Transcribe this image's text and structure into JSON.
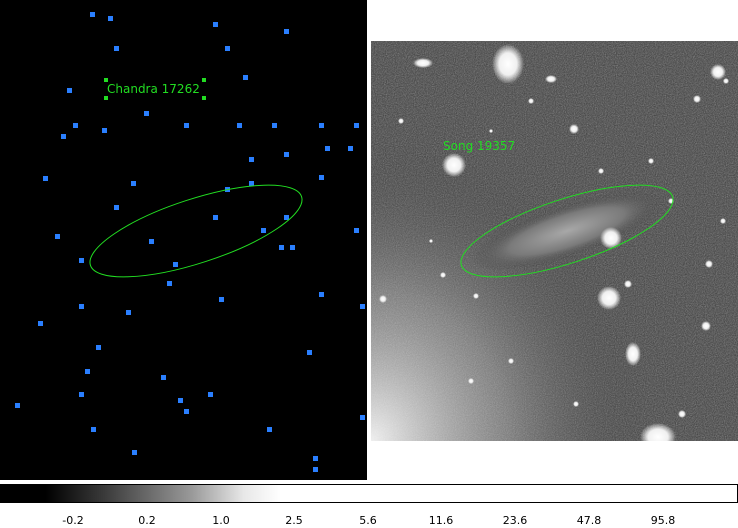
{
  "left_frame": {
    "label": "Chandra 17262",
    "source_color": "#2a7fff",
    "region_color": "#22dd22"
  },
  "right_frame": {
    "label": "Song 19357",
    "region_color": "#22dd22"
  },
  "colorbar": {
    "ticks": [
      "-0.2",
      "0.2",
      "1.0",
      "2.5",
      "5.6",
      "11.6",
      "23.6",
      "47.8",
      "95.8"
    ]
  }
}
